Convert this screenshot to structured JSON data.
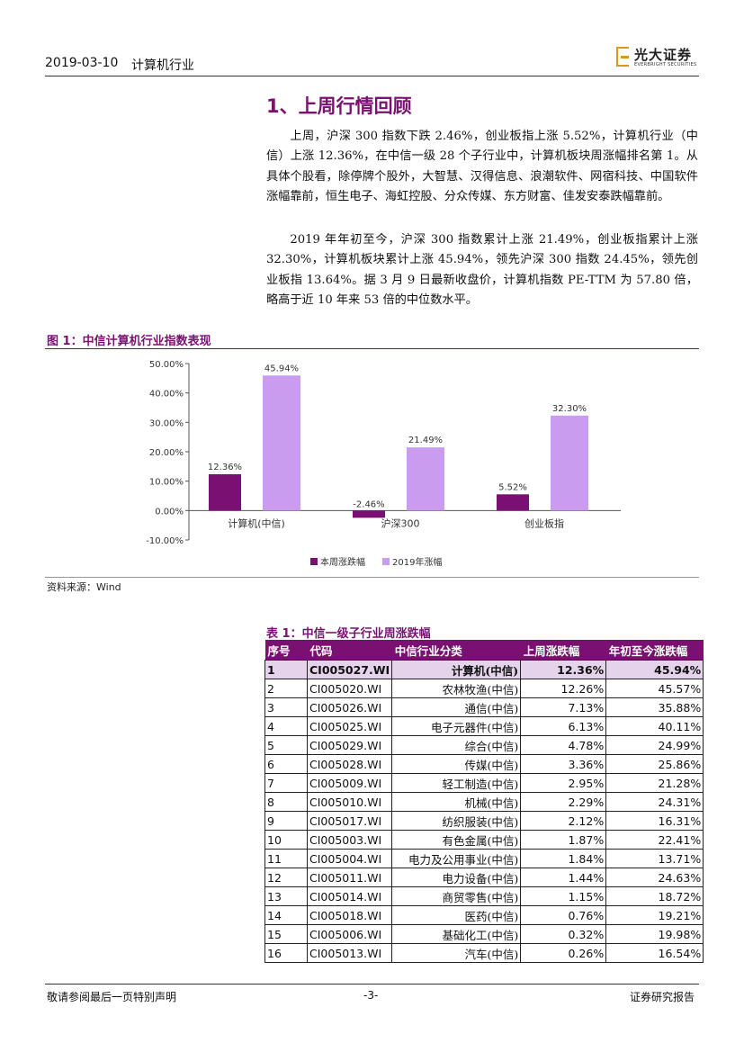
{
  "header": {
    "date": "2019-03-10",
    "industry": "计算机行业",
    "logo_name": "光大证券",
    "logo_en": "EVERBRIGHT SECURITIES"
  },
  "section": {
    "title": "1、上周行情回顾",
    "para1": "上周，沪深 300 指数下跌 2.46%，创业板指上涨 5.52%，计算机行业（中信）上涨 12.36%，在中信一级 28 个子行业中，计算机板块周涨幅排名第 1。从具体个股看，除停牌个股外，大智慧、汉得信息、浪潮软件、网宿科技、中国软件涨幅靠前，恒生电子、海虹控股、分众传媒、东方财富、佳发安泰跌幅靠前。",
    "para2": "2019 年年初至今，沪深 300 指数累计上涨 21.49%，创业板指累计上涨 32.30%，计算机板块累计上涨 45.94%，领先沪深 300 指数 24.45%，领先创业板指 13.64%。据 3 月 9 日最新收盘价，计算机指数 PE-TTM 为 57.80 倍，略高于近 10 年来 53 倍的中位数水平。"
  },
  "figure": {
    "title": "图 1：中信计算机行业指数表现",
    "source": "资料来源：Wind"
  },
  "chart_data": {
    "type": "bar",
    "categories": [
      "计算机(中信)",
      "沪深300",
      "创业板指"
    ],
    "series": [
      {
        "name": "本周涨跌幅",
        "values": [
          12.36,
          -2.46,
          5.52
        ],
        "labels": [
          "12.36%",
          "-2.46%",
          "5.52%"
        ],
        "color": "#7a1072"
      },
      {
        "name": "2019年涨幅",
        "values": [
          45.94,
          21.49,
          32.3
        ],
        "labels": [
          "45.94%",
          "21.49%",
          "32.30%"
        ],
        "color": "#c99cf0"
      }
    ],
    "ylim": [
      -10,
      50
    ],
    "yticks": [
      "-10.00%",
      "0.00%",
      "10.00%",
      "20.00%",
      "30.00%",
      "40.00%",
      "50.00%"
    ],
    "ytick_values": [
      -10,
      0,
      10,
      20,
      30,
      40,
      50
    ],
    "legend_position": "bottom",
    "grid": false
  },
  "table": {
    "title": "表 1：中信一级子行业周涨跌幅",
    "headers": [
      "序号",
      "代码",
      "中信行业分类",
      "上周涨跌幅",
      "年初至今涨跌幅"
    ],
    "rows": [
      [
        "1",
        "CI005027.WI",
        "计算机(中信)",
        "12.36%",
        "45.94%"
      ],
      [
        "2",
        "CI005020.WI",
        "农林牧渔(中信)",
        "12.26%",
        "45.57%"
      ],
      [
        "3",
        "CI005026.WI",
        "通信(中信)",
        "7.13%",
        "35.88%"
      ],
      [
        "4",
        "CI005025.WI",
        "电子元器件(中信)",
        "6.13%",
        "40.11%"
      ],
      [
        "5",
        "CI005029.WI",
        "综合(中信)",
        "4.78%",
        "24.99%"
      ],
      [
        "6",
        "CI005028.WI",
        "传媒(中信)",
        "3.36%",
        "25.86%"
      ],
      [
        "7",
        "CI005009.WI",
        "轻工制造(中信)",
        "2.95%",
        "21.28%"
      ],
      [
        "8",
        "CI005010.WI",
        "机械(中信)",
        "2.29%",
        "24.31%"
      ],
      [
        "9",
        "CI005017.WI",
        "纺织服装(中信)",
        "2.12%",
        "16.31%"
      ],
      [
        "10",
        "CI005003.WI",
        "有色金属(中信)",
        "1.87%",
        "22.41%"
      ],
      [
        "11",
        "CI005004.WI",
        "电力及公用事业(中信)",
        "1.84%",
        "13.71%"
      ],
      [
        "12",
        "CI005011.WI",
        "电力设备(中信)",
        "1.44%",
        "24.63%"
      ],
      [
        "13",
        "CI005014.WI",
        "商贸零售(中信)",
        "1.15%",
        "18.72%"
      ],
      [
        "14",
        "CI005018.WI",
        "医药(中信)",
        "0.76%",
        "19.21%"
      ],
      [
        "15",
        "CI005006.WI",
        "基础化工(中信)",
        "0.32%",
        "19.98%"
      ],
      [
        "16",
        "CI005013.WI",
        "汽车(中信)",
        "0.26%",
        "16.54%"
      ]
    ]
  },
  "footer": {
    "disclaimer": "敬请参阅最后一页特别声明",
    "page": "-3-",
    "doc_type": "证券研究报告"
  }
}
